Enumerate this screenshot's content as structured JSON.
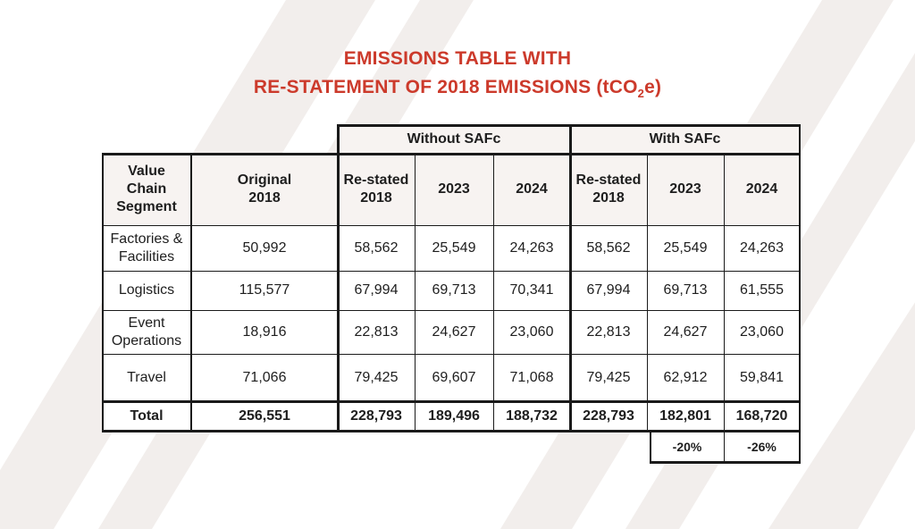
{
  "title": {
    "line1": "EMISSIONS TABLE WITH",
    "line2_pre": "RE-STATEMENT OF 2018 EMISSIONS (tCO",
    "line2_sub": "2",
    "line2_post": "e)"
  },
  "group_headers": {
    "without": "Without SAFc",
    "with": "With SAFc"
  },
  "columns": {
    "segment": [
      "Value",
      "Chain",
      "Segment"
    ],
    "original": [
      "Original",
      "2018"
    ],
    "restated_wo": [
      "Re-stated",
      "2018"
    ],
    "y2023_wo": "2023",
    "y2024_wo": "2024",
    "restated_w": [
      "Re-stated",
      "2018"
    ],
    "y2023_w": "2023",
    "y2024_w": "2024"
  },
  "rows": [
    {
      "label": [
        "Factories &",
        "Facilities"
      ],
      "values": [
        "50,992",
        "58,562",
        "25,549",
        "24,263",
        "58,562",
        "25,549",
        "24,263"
      ]
    },
    {
      "label": [
        "Logistics"
      ],
      "values": [
        "115,577",
        "67,994",
        "69,713",
        "70,341",
        "67,994",
        "69,713",
        "61,555"
      ]
    },
    {
      "label": [
        "Event",
        "Operations"
      ],
      "values": [
        "18,916",
        "22,813",
        "24,627",
        "23,060",
        "22,813",
        "24,627",
        "23,060"
      ]
    },
    {
      "label": [
        "Travel"
      ],
      "values": [
        "71,066",
        "79,425",
        "69,607",
        "71,068",
        "79,425",
        "62,912",
        "59,841"
      ]
    }
  ],
  "total": {
    "label": "Total",
    "values": [
      "256,551",
      "228,793",
      "189,496",
      "188,732",
      "228,793",
      "182,801",
      "168,720"
    ]
  },
  "change": {
    "y2023": "-20%",
    "y2024": "-26%"
  }
}
